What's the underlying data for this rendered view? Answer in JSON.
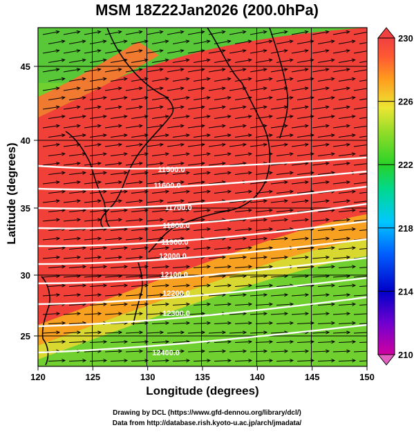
{
  "title": "MSM 18Z22Jan2026 (200.0hPa)",
  "x_axis": {
    "label": "Longitude (degrees)",
    "ticks": [
      "120",
      "125",
      "130",
      "135",
      "140",
      "145",
      "150"
    ]
  },
  "y_axis": {
    "label": "Latitude  (degrees)",
    "ticks": [
      "25",
      "30",
      "35",
      "40",
      "45"
    ]
  },
  "colorbar": {
    "ticks": [
      "210",
      "214",
      "218",
      "222",
      "226",
      "230"
    ],
    "stops": [
      "#d000a0",
      "#7000d0",
      "#0000c8",
      "#0060ff",
      "#00c8ff",
      "#00d890",
      "#28d228",
      "#90dc28",
      "#ece632",
      "#ff9c1e",
      "#ff5a32",
      "#f04040"
    ]
  },
  "contour_labels": [
    "11500.0",
    "11600.0",
    "11700.0",
    "11800.0",
    "11900.0",
    "12000.0",
    "12100.0",
    "12200.0",
    "12300.0",
    "12400.0"
  ],
  "credits": {
    "line1": "Drawing by DCL (https://www.gfd-dennou.org/library/dcl/)",
    "line2": "Data from http://database.rish.kyoto-u.ac.jp/arch/jmadata/"
  },
  "colors": {
    "warm": "#f04038",
    "mid": "#f8a020",
    "cool": "#70d030",
    "contour": "#ffffff",
    "vector": "#000000"
  }
}
